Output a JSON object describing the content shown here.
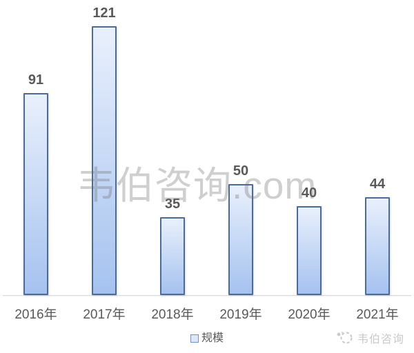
{
  "chart_data": {
    "type": "bar",
    "categories": [
      "2016年",
      "2017年",
      "2018年",
      "2019年",
      "2020年",
      "2021年"
    ],
    "values": [
      91,
      121,
      35,
      50,
      40,
      44
    ],
    "series_name": "规模",
    "title": "",
    "xlabel": "",
    "ylabel": "",
    "ylim": [
      0,
      130
    ],
    "grid": false,
    "legend_position": "bottom-center",
    "data_labels": true
  },
  "watermark": {
    "text": "韦伯咨询.com"
  },
  "footer_logo": {
    "text": "韦伯咨询"
  },
  "colors": {
    "bar_border": "#4a6a9c",
    "bar_fill_top": "#e9f0fc",
    "bar_fill_bottom": "#a5c2ef",
    "label_text": "#595959",
    "axis_line": "#d9d9d9",
    "legend_square_border": "#7191c5",
    "legend_square_fill": "#dde7f7",
    "footer_text": "#c9c9c9"
  }
}
